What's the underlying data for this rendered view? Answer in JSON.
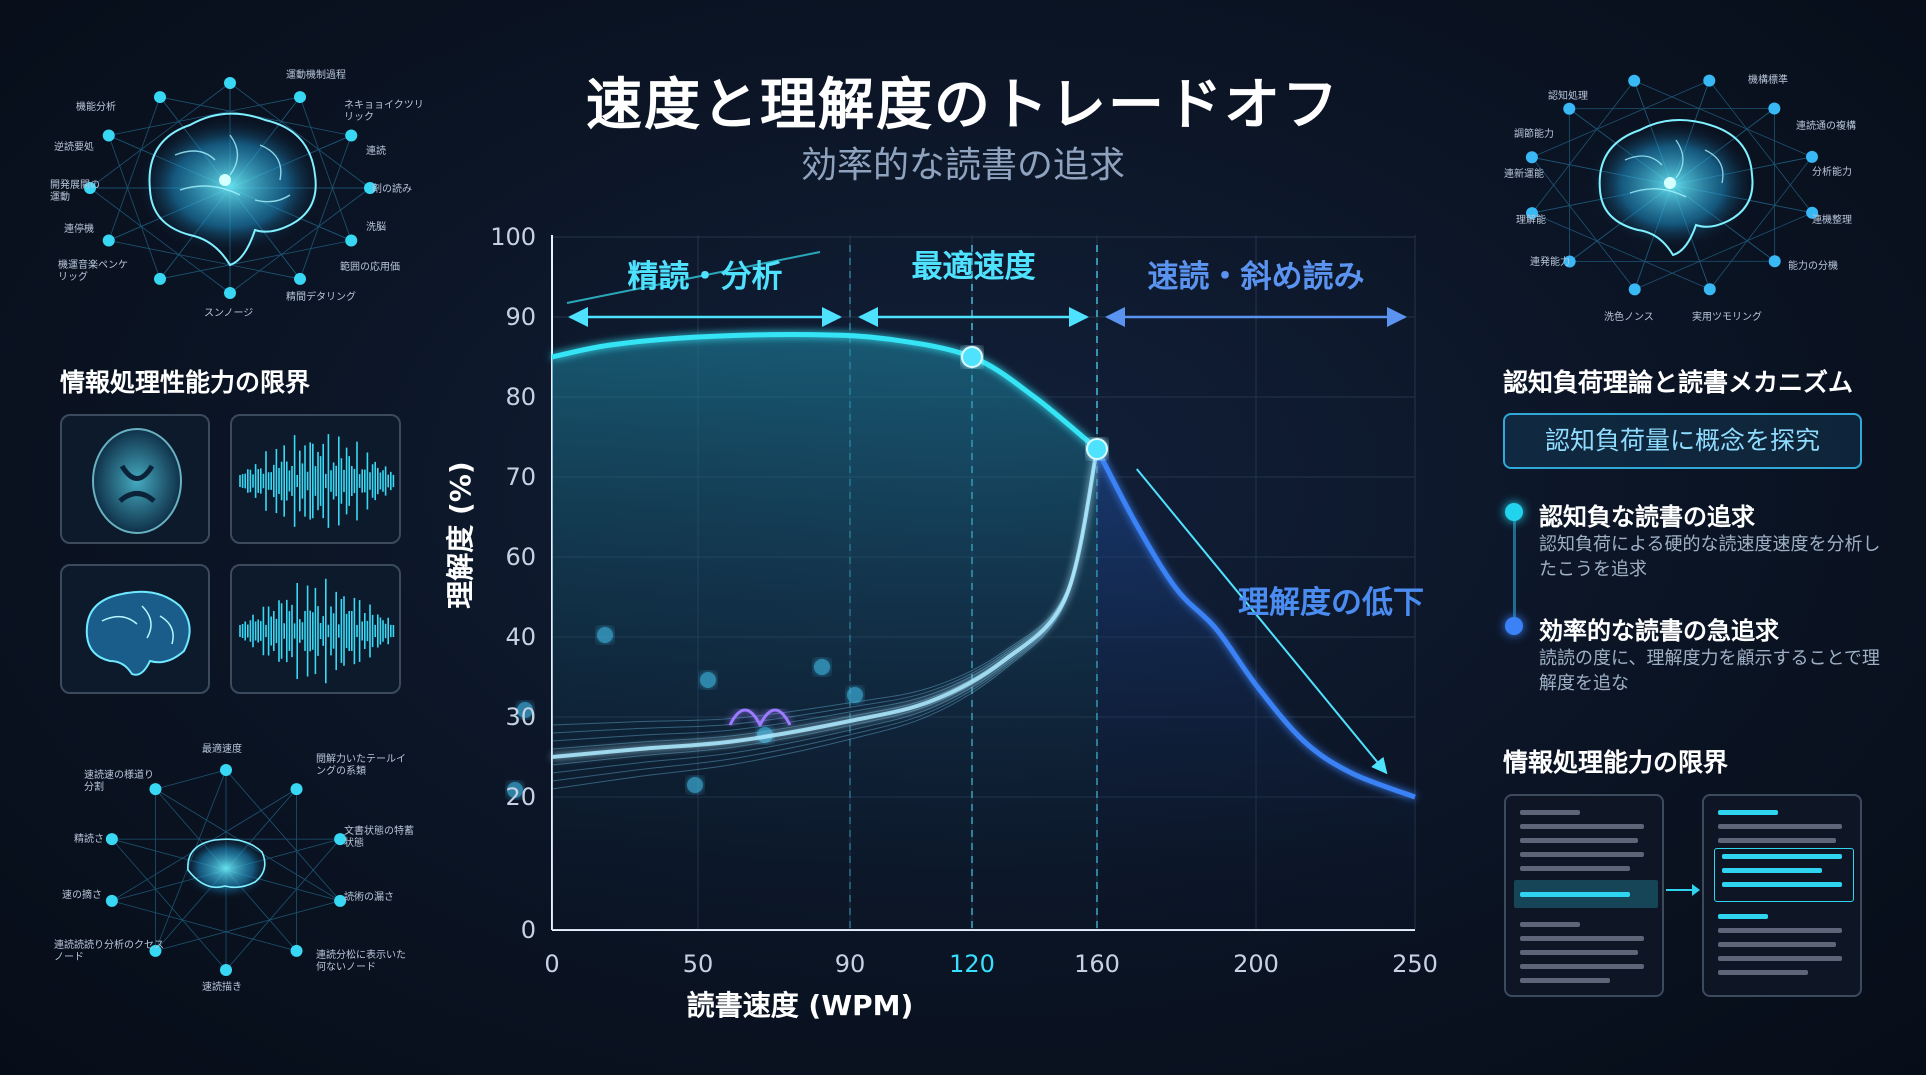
{
  "header": {
    "title": "速度と理解度のトレードオフ",
    "subtitle": "効率的な読書の追求"
  },
  "left_panel": {
    "top_network": {
      "labels": [
        "運動機制過程",
        "ネキョョイクツリリック",
        "連読",
        "剤の読み",
        "洗脳",
        "範囲の応用価",
        "精間デタリング",
        "スンノージ",
        "機運音楽ペンケリッグ",
        "連停機",
        "開発展開の運動",
        "逆読要処",
        "機能分析"
      ]
    },
    "section_title": "情報処理性能力の限界",
    "bottom_network": {
      "labels": [
        "最適速度",
        "閲解力いたテールイングの系類",
        "文書状態の特蓄状態",
        "読術の漏さ",
        "連読分松に表示いた何ないノード",
        "速読描き",
        "連読読読り分析のクセスノード",
        "速の摘さ",
        "精読さ",
        "速読速の様道り分割"
      ]
    }
  },
  "right_panel": {
    "top_network": {
      "labels": [
        "機構標準",
        "連読通の複構",
        "分析能力",
        "連機整理",
        "能力の分機",
        "実用ツモリング",
        "洗色ノンス",
        "連発能力",
        "理解能",
        "連新運能",
        "調節能力",
        "認知処理"
      ]
    },
    "section_title": "認知負荷理論と読書メカニズム",
    "concept_box": "認知負荷量に概念を探究",
    "bullets": [
      {
        "heading": "認知負な読書の追求",
        "text": "認知負荷による硬的な読速度速度を分析したこうを追求",
        "color": "#22d3ee"
      },
      {
        "heading": "効率的な読書の急追求",
        "text": "読読の度に、理解度力を顧示することで理解度を追な",
        "color": "#3b82f6"
      }
    ],
    "bottom_title": "情報処理能力の限界"
  },
  "chart_data": {
    "type": "line",
    "xlabel": "読書速度 (WPM)",
    "ylabel": "理解度 (%)",
    "x_ticks": [
      "0",
      "50",
      "90",
      "120",
      "160",
      "200",
      "250"
    ],
    "x_tick_values": [
      0,
      50,
      90,
      120,
      160,
      200,
      250
    ],
    "highlight_x_tick": "120",
    "y_ticks": [
      "0",
      "20",
      "30",
      "40",
      "60",
      "70",
      "80",
      "90",
      "100"
    ],
    "y_tick_values": [
      0,
      20,
      30,
      40,
      60,
      70,
      80,
      90,
      100
    ],
    "zones": [
      {
        "label": "精読・分析",
        "from": 0,
        "to": 90,
        "color": "#4fe2ff"
      },
      {
        "label": "最適速度",
        "from": 90,
        "to": 160,
        "color": "#4fe2ff"
      },
      {
        "label": "速読・斜め読み",
        "from": 160,
        "to": 250,
        "color": "#5b93f0"
      }
    ],
    "annotation": "理解度の低下",
    "series": [
      {
        "color": "#36e4f5",
        "x": [
          0,
          20,
          50,
          80,
          100,
          120,
          140,
          160
        ],
        "y": [
          85,
          86.5,
          87.5,
          87.8,
          87.2,
          85,
          80,
          73.5
        ]
      },
      {
        "color": "#3b82f6",
        "x": [
          160,
          170,
          180,
          190,
          200,
          215,
          230,
          250
        ],
        "y": [
          73.5,
          64,
          52,
          42,
          34,
          27,
          23,
          20
        ]
      },
      {
        "color": "#aeeaff",
        "x": [
          0,
          30,
          60,
          90,
          110,
          130,
          150,
          160
        ],
        "y": [
          25,
          26,
          27,
          29.5,
          32,
          37,
          50,
          73.5
        ]
      }
    ],
    "markers": [
      {
        "x": 120,
        "y": 85
      },
      {
        "x": 160,
        "y": 73.5
      }
    ]
  }
}
